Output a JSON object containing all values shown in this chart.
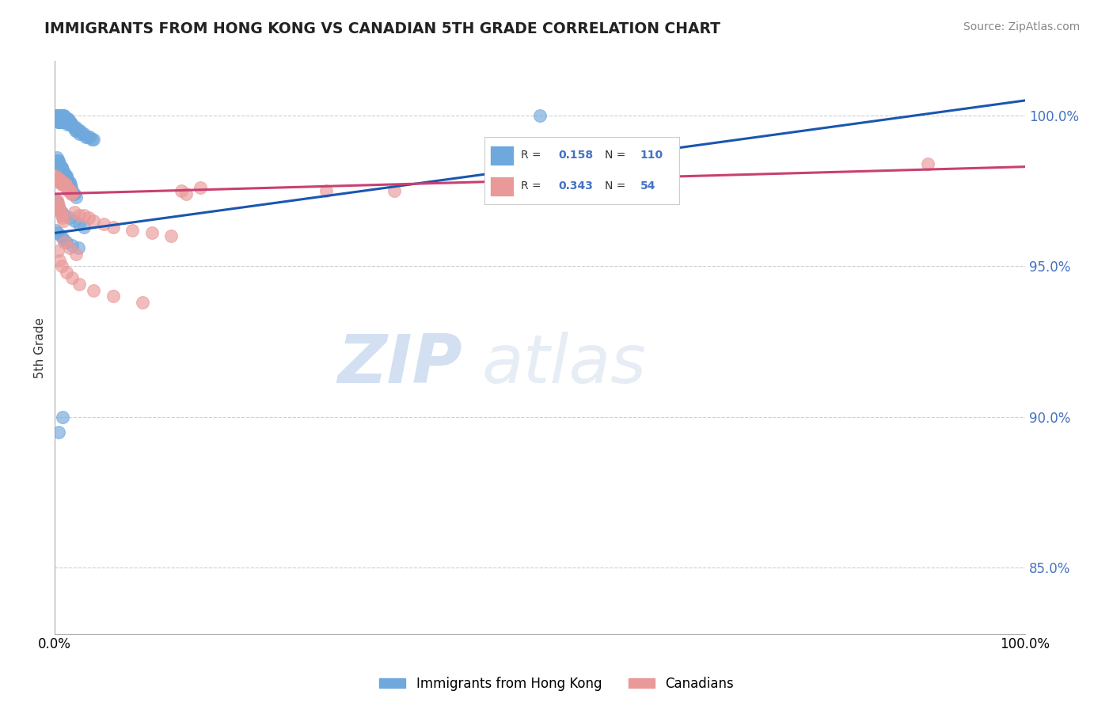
{
  "title": "IMMIGRANTS FROM HONG KONG VS CANADIAN 5TH GRADE CORRELATION CHART",
  "source_text": "Source: ZipAtlas.com",
  "ylabel": "5th Grade",
  "y_ticks": [
    0.85,
    0.9,
    0.95,
    1.0
  ],
  "y_tick_labels": [
    "85.0%",
    "90.0%",
    "95.0%",
    "100.0%"
  ],
  "x_min": 0.0,
  "x_max": 1.0,
  "y_min": 0.828,
  "y_max": 1.018,
  "blue_color": "#6fa8dc",
  "pink_color": "#ea9999",
  "blue_line_color": "#1a56b0",
  "pink_line_color": "#c94070",
  "blue_R": 0.158,
  "blue_N": 110,
  "pink_R": 0.343,
  "pink_N": 54,
  "legend_label_blue": "Immigrants from Hong Kong",
  "legend_label_pink": "Canadians",
  "watermark_zip": "ZIP",
  "watermark_atlas": "atlas",
  "blue_trend_x": [
    0.0,
    1.0
  ],
  "blue_trend_y": [
    0.961,
    1.005
  ],
  "pink_trend_x": [
    0.0,
    1.0
  ],
  "pink_trend_y": [
    0.974,
    0.983
  ],
  "blue_x": [
    0.001,
    0.001,
    0.001,
    0.002,
    0.002,
    0.002,
    0.002,
    0.003,
    0.003,
    0.003,
    0.003,
    0.003,
    0.004,
    0.004,
    0.004,
    0.004,
    0.005,
    0.005,
    0.005,
    0.005,
    0.005,
    0.006,
    0.006,
    0.006,
    0.006,
    0.007,
    0.007,
    0.007,
    0.008,
    0.008,
    0.008,
    0.009,
    0.009,
    0.009,
    0.01,
    0.01,
    0.01,
    0.011,
    0.011,
    0.012,
    0.012,
    0.013,
    0.013,
    0.014,
    0.014,
    0.015,
    0.015,
    0.016,
    0.016,
    0.017,
    0.018,
    0.019,
    0.02,
    0.021,
    0.022,
    0.023,
    0.024,
    0.025,
    0.026,
    0.028,
    0.03,
    0.032,
    0.034,
    0.036,
    0.038,
    0.04,
    0.002,
    0.003,
    0.004,
    0.005,
    0.006,
    0.007,
    0.008,
    0.009,
    0.01,
    0.011,
    0.012,
    0.013,
    0.014,
    0.015,
    0.016,
    0.017,
    0.018,
    0.019,
    0.02,
    0.022,
    0.001,
    0.002,
    0.003,
    0.005,
    0.007,
    0.01,
    0.015,
    0.02,
    0.025,
    0.03,
    0.001,
    0.003,
    0.006,
    0.009,
    0.012,
    0.018,
    0.024,
    0.5,
    0.008,
    0.004
  ],
  "blue_y": [
    1.0,
    0.999,
    1.0,
    0.999,
    1.0,
    0.999,
    1.0,
    0.999,
    1.0,
    0.999,
    1.0,
    0.998,
    0.999,
    1.0,
    0.999,
    0.998,
    1.0,
    0.999,
    0.998,
    1.0,
    0.999,
    0.999,
    1.0,
    0.998,
    0.999,
    0.999,
    1.0,
    0.998,
    0.999,
    0.998,
    1.0,
    0.999,
    0.998,
    1.0,
    0.999,
    0.998,
    1.0,
    0.999,
    0.998,
    0.999,
    0.998,
    0.999,
    0.997,
    0.998,
    0.999,
    0.998,
    0.997,
    0.998,
    0.997,
    0.997,
    0.997,
    0.996,
    0.996,
    0.995,
    0.996,
    0.995,
    0.995,
    0.994,
    0.995,
    0.994,
    0.994,
    0.993,
    0.993,
    0.993,
    0.992,
    0.992,
    0.986,
    0.985,
    0.985,
    0.984,
    0.983,
    0.983,
    0.982,
    0.981,
    0.981,
    0.98,
    0.98,
    0.979,
    0.978,
    0.978,
    0.977,
    0.976,
    0.975,
    0.974,
    0.974,
    0.973,
    0.972,
    0.971,
    0.97,
    0.969,
    0.968,
    0.967,
    0.966,
    0.965,
    0.964,
    0.963,
    0.962,
    0.961,
    0.96,
    0.959,
    0.958,
    0.957,
    0.956,
    1.0,
    0.9,
    0.895
  ],
  "pink_x": [
    0.001,
    0.002,
    0.003,
    0.004,
    0.005,
    0.006,
    0.007,
    0.008,
    0.009,
    0.01,
    0.011,
    0.012,
    0.013,
    0.014,
    0.015,
    0.016,
    0.017,
    0.018,
    0.002,
    0.003,
    0.004,
    0.005,
    0.006,
    0.007,
    0.008,
    0.009,
    0.02,
    0.025,
    0.03,
    0.035,
    0.04,
    0.05,
    0.06,
    0.08,
    0.1,
    0.12,
    0.13,
    0.135,
    0.15,
    0.28,
    0.35,
    0.9,
    0.003,
    0.005,
    0.007,
    0.012,
    0.018,
    0.025,
    0.04,
    0.06,
    0.09,
    0.01,
    0.015,
    0.022
  ],
  "pink_y": [
    0.98,
    0.979,
    0.979,
    0.978,
    0.979,
    0.978,
    0.977,
    0.977,
    0.978,
    0.977,
    0.977,
    0.976,
    0.976,
    0.975,
    0.975,
    0.975,
    0.974,
    0.974,
    0.972,
    0.971,
    0.97,
    0.969,
    0.968,
    0.967,
    0.966,
    0.965,
    0.968,
    0.967,
    0.967,
    0.966,
    0.965,
    0.964,
    0.963,
    0.962,
    0.961,
    0.96,
    0.975,
    0.974,
    0.976,
    0.975,
    0.975,
    0.984,
    0.955,
    0.952,
    0.95,
    0.948,
    0.946,
    0.944,
    0.942,
    0.94,
    0.938,
    0.958,
    0.956,
    0.954
  ]
}
